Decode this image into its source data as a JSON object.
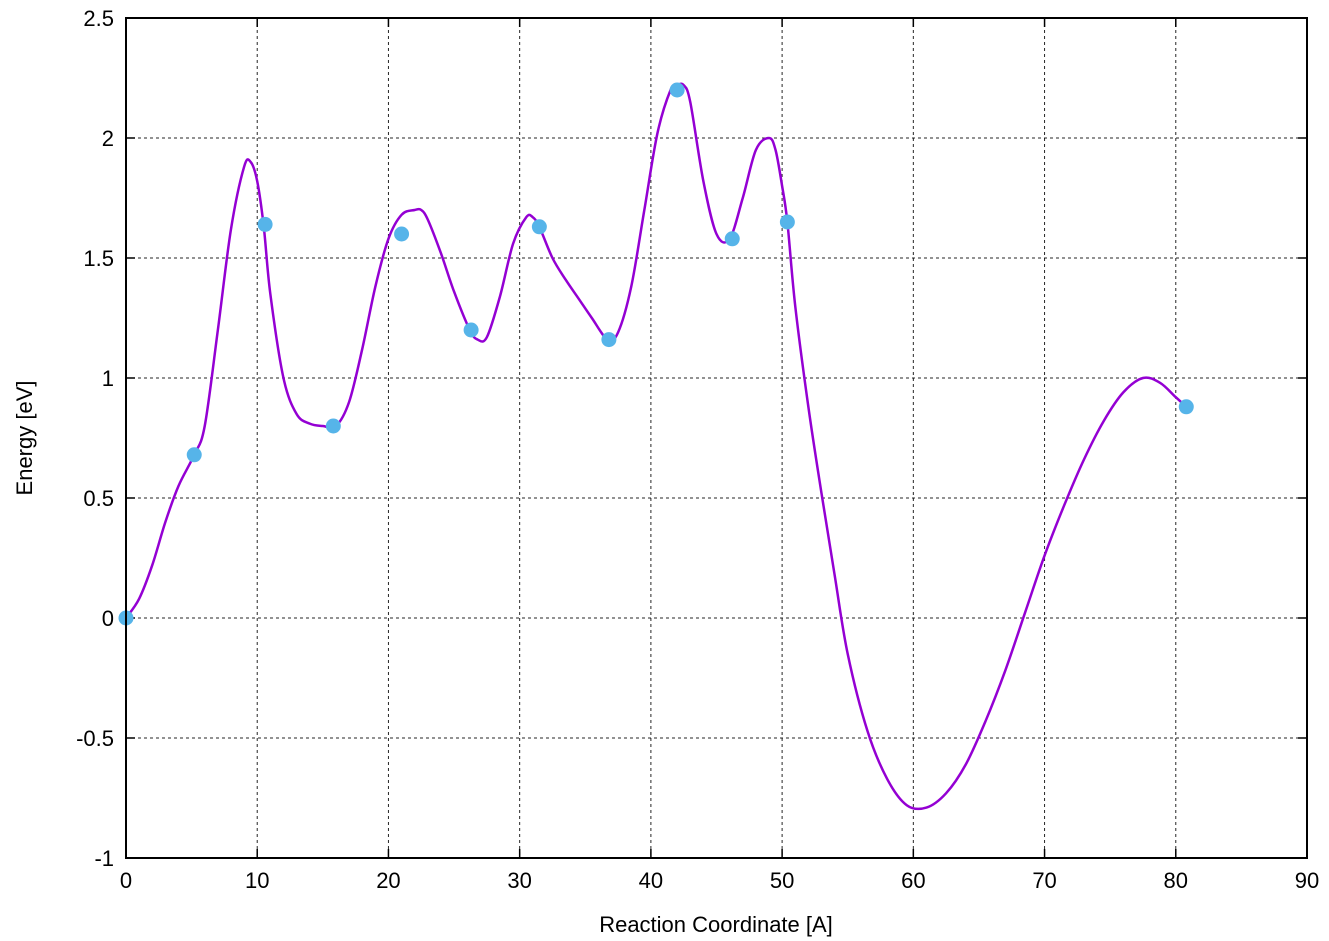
{
  "chart_data": {
    "type": "line",
    "xlabel": "Reaction Coordinate [A]",
    "ylabel": "Energy [eV]",
    "xlim": [
      0,
      90
    ],
    "ylim": [
      -1,
      2.5
    ],
    "xticks": [
      0,
      10,
      20,
      30,
      40,
      50,
      60,
      70,
      80,
      90
    ],
    "yticks": [
      -1,
      -0.5,
      0,
      0.5,
      1,
      1.5,
      2,
      2.5
    ],
    "xtick_labels": [
      "0",
      "10",
      "20",
      "30",
      "40",
      "50",
      "60",
      "70",
      "80",
      "90"
    ],
    "ytick_labels": [
      "-1",
      "-0.5",
      "0",
      "0.5",
      "1",
      "1.5",
      "2",
      "2.5"
    ],
    "grid": true,
    "series": [
      {
        "kind": "curve",
        "color": "#9400d3",
        "x": [
          0,
          1,
          2,
          3,
          4,
          5.2,
          6,
          7,
          8,
          9,
          9.5,
          10,
          10.5,
          11,
          12,
          13,
          14,
          15,
          16,
          17,
          18,
          19,
          20,
          21,
          22,
          22.5,
          23,
          24,
          25,
          26.2,
          26.8,
          27.5,
          28.5,
          29.5,
          30.5,
          31,
          31.5,
          32.5,
          33.5,
          34.5,
          35.5,
          36.7,
          37.5,
          38.5,
          39.5,
          40.5,
          41.5,
          42,
          42.5,
          43,
          44,
          45,
          46,
          47,
          48,
          49,
          49.5,
          50,
          50.4,
          51,
          52,
          53,
          54,
          55,
          56.5,
          58,
          59.5,
          61,
          62.5,
          64,
          65.5,
          67,
          68.5,
          70,
          71.5,
          73,
          74.5,
          76,
          77.5,
          78.8,
          80,
          80.8
        ],
        "y": [
          0,
          0.08,
          0.22,
          0.4,
          0.55,
          0.68,
          0.8,
          1.2,
          1.62,
          1.88,
          1.9,
          1.82,
          1.63,
          1.35,
          1.0,
          0.85,
          0.81,
          0.8,
          0.8,
          0.9,
          1.12,
          1.38,
          1.58,
          1.68,
          1.7,
          1.7,
          1.66,
          1.52,
          1.36,
          1.2,
          1.16,
          1.17,
          1.34,
          1.56,
          1.67,
          1.67,
          1.63,
          1.5,
          1.41,
          1.33,
          1.25,
          1.16,
          1.19,
          1.38,
          1.7,
          2.02,
          2.2,
          2.22,
          2.22,
          2.15,
          1.82,
          1.6,
          1.58,
          1.75,
          1.95,
          2.0,
          1.95,
          1.8,
          1.65,
          1.3,
          0.88,
          0.52,
          0.18,
          -0.15,
          -0.47,
          -0.67,
          -0.78,
          -0.79,
          -0.73,
          -0.61,
          -0.43,
          -0.22,
          0.02,
          0.26,
          0.47,
          0.66,
          0.82,
          0.94,
          1.0,
          0.98,
          0.92,
          0.88
        ]
      },
      {
        "kind": "points",
        "color": "#56b4e9",
        "x": [
          0,
          5.2,
          10.6,
          15.8,
          21,
          26.3,
          31.5,
          36.8,
          42,
          46.2,
          50.4,
          80.8
        ],
        "y": [
          0,
          0.68,
          1.64,
          0.8,
          1.6,
          1.2,
          1.63,
          1.16,
          2.2,
          1.58,
          1.65,
          0.88
        ]
      }
    ]
  }
}
